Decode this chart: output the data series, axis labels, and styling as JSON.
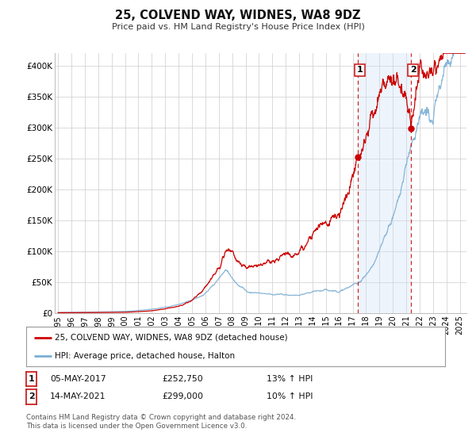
{
  "title": "25, COLVEND WAY, WIDNES, WA8 9DZ",
  "subtitle": "Price paid vs. HM Land Registry's House Price Index (HPI)",
  "ylim": [
    0,
    420000
  ],
  "xlim_start": 1994.75,
  "xlim_end": 2025.5,
  "yticks": [
    0,
    50000,
    100000,
    150000,
    200000,
    250000,
    300000,
    350000,
    400000
  ],
  "ytick_labels": [
    "£0",
    "£50K",
    "£100K",
    "£150K",
    "£200K",
    "£250K",
    "£300K",
    "£350K",
    "£400K"
  ],
  "xtick_years": [
    1995,
    1996,
    1997,
    1998,
    1999,
    2000,
    2001,
    2002,
    2003,
    2004,
    2005,
    2006,
    2007,
    2008,
    2009,
    2010,
    2011,
    2012,
    2013,
    2014,
    2015,
    2016,
    2017,
    2018,
    2019,
    2020,
    2021,
    2022,
    2023,
    2024,
    2025
  ],
  "hpi_color": "#7bafd4",
  "price_color": "#cc0000",
  "purchase1_date": 2017.37,
  "purchase1_price": 252750,
  "purchase2_date": 2021.37,
  "purchase2_price": 299000,
  "legend_label_price": "25, COLVEND WAY, WIDNES, WA8 9DZ (detached house)",
  "legend_label_hpi": "HPI: Average price, detached house, Halton",
  "footnote_row1": "Contains HM Land Registry data © Crown copyright and database right 2024.",
  "footnote_row2": "This data is licensed under the Open Government Licence v3.0.",
  "table_row1_label": "1",
  "table_row1_date": "05-MAY-2017",
  "table_row1_price": "£252,750",
  "table_row1_hpi": "13% ↑ HPI",
  "table_row2_label": "2",
  "table_row2_date": "14-MAY-2021",
  "table_row2_price": "£299,000",
  "table_row2_hpi": "10% ↑ HPI",
  "bg_color": "#ffffff",
  "grid_color": "#cccccc",
  "shade_color": "#cce0f5"
}
